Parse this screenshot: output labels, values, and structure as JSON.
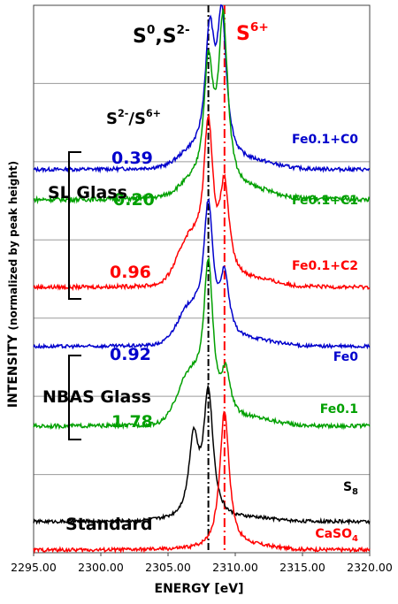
{
  "chart_data": {
    "type": "line",
    "xlabel": "ENERGY",
    "xunit": "[eV]",
    "ylabel": "INTENSITY",
    "ylabel_note": "(normalized by peak height)",
    "xlim": [
      2295.0,
      2320.0
    ],
    "xticks": [
      "2295.00",
      "2300.00",
      "2305.00",
      "2310.00",
      "2315.00",
      "2320.00"
    ],
    "grid": "horizontal",
    "reference_lines": [
      {
        "x": 2308.0,
        "label_main": "S",
        "label_sup": "0",
        "label_sep": ",S",
        "label_sup2": "2-",
        "color": "#000000"
      },
      {
        "x": 2309.2,
        "label_main": "S",
        "label_sup": "6+",
        "label_sep": "",
        "label_sup2": "",
        "color": "#ff0000"
      }
    ],
    "ratio_header": {
      "s1": "S",
      "sup1": "2-",
      "sep": "/S",
      "sup2": "6+"
    },
    "groups": [
      {
        "name": "SL Glass",
        "members": [
          "Fe0.1+C0",
          "Fe0.1+C1",
          "Fe0.1+C2"
        ]
      },
      {
        "name": "NBAS Glass",
        "members": [
          "Fe0",
          "Fe0.1"
        ]
      },
      {
        "name": "Standard",
        "members": [
          "S8",
          "CaSO4"
        ]
      }
    ],
    "series": [
      {
        "name": "Fe0.1+C0",
        "color": "#0000cc",
        "ratio": "0.39",
        "peaks": [
          {
            "x": 2308.1,
            "h": 0.88
          },
          {
            "x": 2309.0,
            "h": 1.0
          }
        ],
        "shoulder": 0.08
      },
      {
        "name": "Fe0.1+C1",
        "color": "#00a000",
        "ratio": "0.20",
        "peaks": [
          {
            "x": 2308.0,
            "h": 0.72
          },
          {
            "x": 2309.1,
            "h": 1.0
          }
        ],
        "shoulder": 0.06
      },
      {
        "name": "Fe0.1+C2",
        "color": "#ff0000",
        "ratio": "0.96",
        "peaks": [
          {
            "x": 2308.0,
            "h": 1.0
          },
          {
            "x": 2309.2,
            "h": 0.62
          }
        ],
        "shoulder": 0.28
      },
      {
        "name": "Fe0",
        "color": "#0000cc",
        "ratio": "0.92",
        "peaks": [
          {
            "x": 2308.0,
            "h": 1.0
          },
          {
            "x": 2309.2,
            "h": 0.48
          }
        ],
        "shoulder": 0.25
      },
      {
        "name": "Fe0.1",
        "color": "#00a000",
        "ratio": "1.78",
        "peaks": [
          {
            "x": 2308.0,
            "h": 1.0
          },
          {
            "x": 2309.3,
            "h": 0.3
          }
        ],
        "shoulder": 0.3
      },
      {
        "name": "S",
        "name_sub": "8",
        "color": "#000000",
        "ratio": "",
        "peaks": [
          {
            "x": 2308.0,
            "h": 1.0
          },
          {
            "x": 2306.9,
            "h": 0.62
          }
        ],
        "shoulder": 0.0
      },
      {
        "name": "CaSO",
        "name_sub": "4",
        "color": "#ff0000",
        "ratio": "",
        "peaks": [
          {
            "x": 2309.2,
            "h": 1.0
          }
        ],
        "shoulder": 0.0
      }
    ]
  }
}
